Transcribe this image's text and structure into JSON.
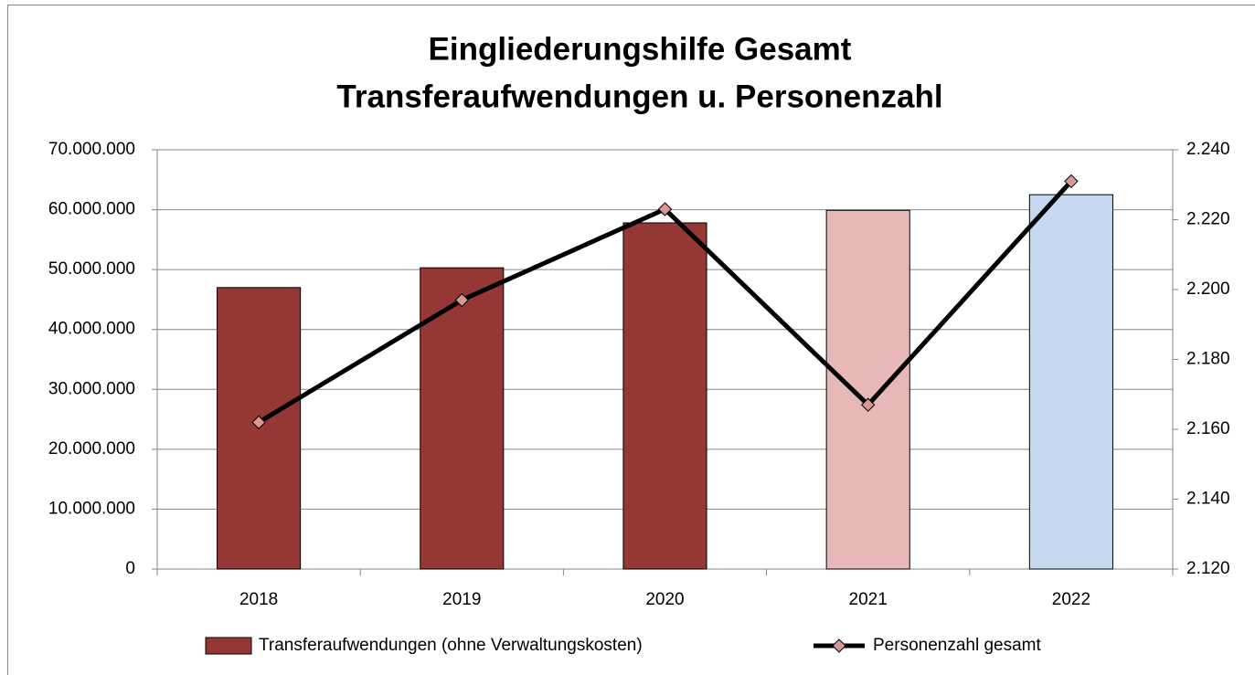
{
  "chart_data": {
    "type": "bar-line",
    "title": [
      "Eingliederungshilfe Gesamt",
      "Transferaufwendungen u. Personenzahl"
    ],
    "categories": [
      "2018",
      "2019",
      "2020",
      "2021",
      "2022"
    ],
    "series": [
      {
        "name": "Transferaufwendungen (ohne Verwaltungskosten)",
        "type": "bar",
        "color": "#953735",
        "colors": [
          "#953735",
          "#953735",
          "#953735",
          "#e6b9b8",
          "#c6d9f0"
        ],
        "values": [
          47000000,
          50300000,
          57800000,
          59900000,
          62500000
        ]
      },
      {
        "name": "Personenzahl gesamt",
        "type": "line",
        "axis": "y2",
        "color": "#000000",
        "marker_color": "#d99694",
        "values": [
          2162,
          2197,
          2223,
          2167,
          2231
        ]
      }
    ],
    "ylim": [
      0,
      70000000
    ],
    "yticks": [
      0,
      {
        "value": 10000000,
        "label": "10.000.000"
      },
      {
        "value": 20000000,
        "label": "20.000.000"
      },
      {
        "value": 30000000,
        "label": "30.000.000"
      },
      {
        "value": 40000000,
        "label": "40.000.000"
      },
      {
        "value": 50000000,
        "label": "50.000.000"
      },
      {
        "value": 60000000,
        "label": "60.000.000"
      },
      {
        "value": 70000000,
        "label": "70.000.000"
      }
    ],
    "y2lim": [
      2120,
      2240
    ],
    "y2ticks": [
      {
        "value": 2120,
        "label": "2.120"
      },
      {
        "value": 2140,
        "label": "2.140"
      },
      {
        "value": 2160,
        "label": "2.160"
      },
      {
        "value": 2180,
        "label": "2.180"
      },
      {
        "value": 2200,
        "label": "2.200"
      },
      {
        "value": 2220,
        "label": "2.220"
      },
      {
        "value": 2240,
        "label": "2.240"
      }
    ],
    "grid": true,
    "legend": "bottom"
  }
}
